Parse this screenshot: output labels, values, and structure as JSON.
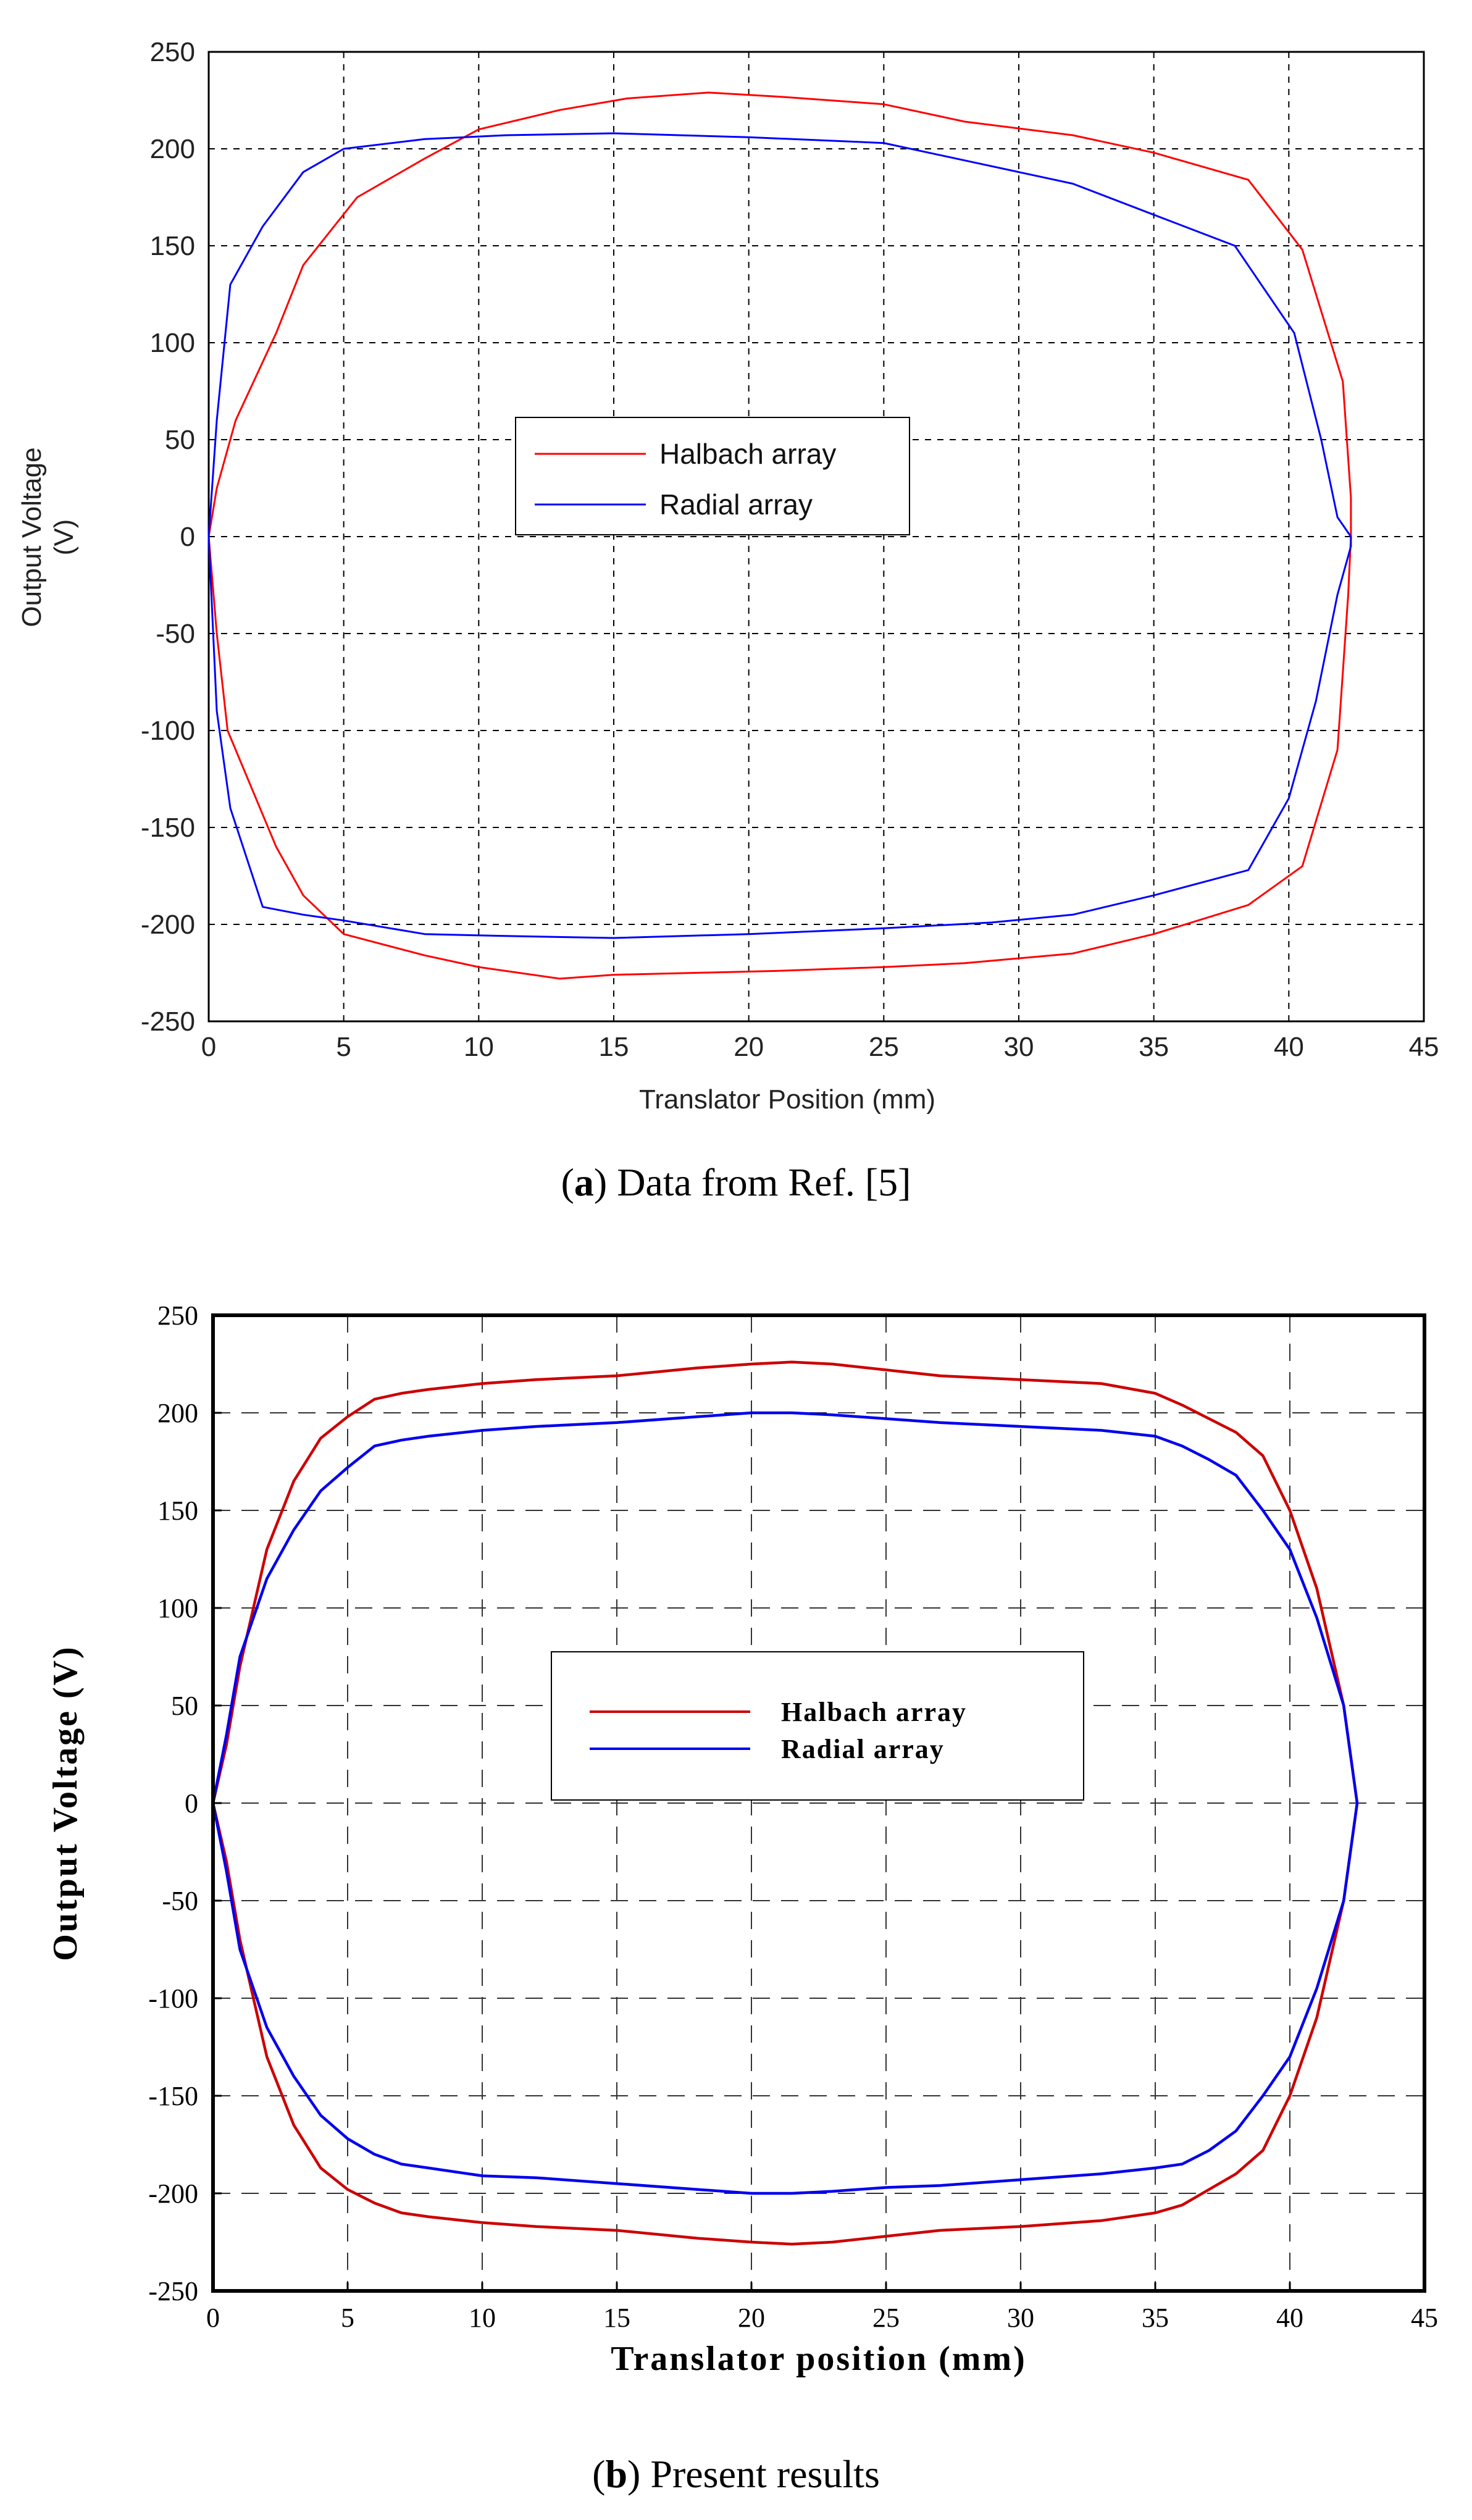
{
  "chart_data": [
    {
      "type": "line",
      "id": "a",
      "caption_letter": "a",
      "caption_text": "Data from Ref. [5]",
      "title": "",
      "xlabel": "Translator Position (mm)",
      "ylabel_line1": "Output Voltage",
      "ylabel_line2": "(V)",
      "xlim": [
        0,
        45
      ],
      "ylim": [
        -250,
        250
      ],
      "xticks": [
        0,
        5,
        10,
        15,
        20,
        25,
        30,
        35,
        40,
        45
      ],
      "yticks": [
        250,
        200,
        150,
        100,
        50,
        0,
        -50,
        -100,
        -150,
        -200,
        -250
      ],
      "grid": true,
      "legend_position": "center",
      "series": [
        {
          "name": "Halbach array",
          "color": "#ff0000",
          "x": [
            0,
            0.3,
            1,
            2.5,
            3.5,
            5.5,
            8,
            10,
            13,
            15.5,
            18.5,
            21,
            25,
            28,
            32,
            35,
            38.5,
            40.5,
            42,
            42.3,
            42.3,
            42.2,
            41.8,
            40.5,
            38.5,
            35,
            32,
            28,
            25,
            21,
            18,
            15,
            13,
            10,
            8,
            5,
            3.5,
            2.5,
            0.7,
            0.3,
            0
          ],
          "y": [
            0,
            25,
            60,
            105,
            140,
            175,
            195,
            210,
            220,
            226,
            229,
            227,
            223,
            214,
            207,
            198,
            184,
            148,
            80,
            20,
            0,
            -30,
            -110,
            -170,
            -190,
            -205,
            -215,
            -220,
            -222,
            -224,
            -225,
            -226,
            -228,
            -222,
            -216,
            -205,
            -185,
            -160,
            -100,
            -50,
            0
          ]
        },
        {
          "name": "Radial array",
          "color": "#0000ff",
          "x": [
            0,
            0.3,
            0.8,
            2,
            3.5,
            5,
            8,
            11,
            15,
            20,
            25,
            28,
            32,
            35,
            38,
            40.2,
            41.2,
            41.8,
            42.3,
            42.3,
            41.8,
            41,
            40,
            38.5,
            35,
            32,
            29,
            25,
            20,
            15,
            11,
            8,
            5,
            3.5,
            2,
            0.8,
            0.3,
            0
          ],
          "y": [
            0,
            60,
            130,
            160,
            188,
            200,
            205,
            207,
            208,
            206,
            203,
            194,
            182,
            166,
            150,
            105,
            50,
            10,
            0,
            -5,
            -30,
            -85,
            -135,
            -172,
            -185,
            -195,
            -199,
            -202,
            -205,
            -207,
            -206,
            -205,
            -198,
            -195,
            -191,
            -140,
            -90,
            0
          ]
        }
      ]
    },
    {
      "type": "line",
      "id": "b",
      "caption_letter": "b",
      "caption_text": "Present results",
      "title": "",
      "xlabel": "Translator position (mm)",
      "ylabel": "Output Voltage (V)",
      "xlim": [
        0,
        45
      ],
      "ylim": [
        -250,
        250
      ],
      "xticks": [
        0,
        5,
        10,
        15,
        20,
        25,
        30,
        35,
        40,
        45
      ],
      "yticks": [
        250,
        200,
        150,
        100,
        50,
        0,
        -50,
        -100,
        -150,
        -200,
        -250
      ],
      "grid": true,
      "legend_position": "center",
      "series": [
        {
          "name": "Halbach array",
          "color": "#cc0000",
          "x": [
            0,
            0.5,
            1,
            2,
            3,
            4,
            5,
            6,
            7,
            8,
            10,
            12,
            15,
            18,
            20,
            21.5,
            23,
            25,
            27,
            30,
            33,
            35,
            36,
            37,
            38,
            39,
            40,
            41,
            42,
            42.5,
            42.5,
            42,
            41,
            40,
            39,
            38,
            37,
            36,
            35,
            33,
            30,
            27,
            25,
            23,
            21.5,
            20,
            18,
            15,
            12,
            10,
            8,
            7,
            6,
            5,
            4,
            3,
            2,
            1,
            0.5,
            0
          ],
          "y": [
            0,
            30,
            70,
            130,
            165,
            187,
            198,
            207,
            210,
            212,
            215,
            217,
            219,
            223,
            225,
            226,
            225,
            222,
            219,
            217,
            215,
            210,
            204,
            197,
            190,
            178,
            150,
            110,
            50,
            0,
            0,
            -50,
            -110,
            -150,
            -178,
            -190,
            -198,
            -206,
            -210,
            -214,
            -217,
            -219,
            -222,
            -225,
            -226,
            -225,
            -223,
            -219,
            -217,
            -215,
            -212,
            -210,
            -205,
            -198,
            -187,
            -165,
            -130,
            -70,
            -30,
            0
          ]
        },
        {
          "name": "Radial array",
          "color": "#0000ee",
          "x": [
            0,
            0.5,
            1,
            2,
            3,
            4,
            5,
            6,
            7,
            8,
            10,
            12,
            15,
            18,
            20,
            21.5,
            23,
            25,
            27,
            30,
            33,
            35,
            36,
            37,
            38,
            39,
            40,
            41,
            42,
            42.5,
            42.5,
            42,
            41,
            40,
            39,
            38,
            37,
            36,
            35,
            33,
            30,
            27,
            25,
            23,
            21.5,
            20,
            18,
            15,
            12,
            10,
            8,
            7,
            6,
            5,
            4,
            3,
            2,
            1,
            0.5,
            0
          ],
          "y": [
            0,
            35,
            75,
            115,
            140,
            160,
            172,
            183,
            186,
            188,
            191,
            193,
            195,
            198,
            200,
            200,
            199,
            197,
            195,
            193,
            191,
            188,
            183,
            176,
            168,
            150,
            130,
            95,
            50,
            0,
            0,
            -50,
            -95,
            -130,
            -150,
            -168,
            -178,
            -185,
            -187,
            -190,
            -193,
            -196,
            -197,
            -199,
            -200,
            -200,
            -198,
            -195,
            -192,
            -191,
            -187,
            -185,
            -180,
            -172,
            -160,
            -140,
            -115,
            -75,
            -35,
            0
          ]
        }
      ]
    }
  ]
}
